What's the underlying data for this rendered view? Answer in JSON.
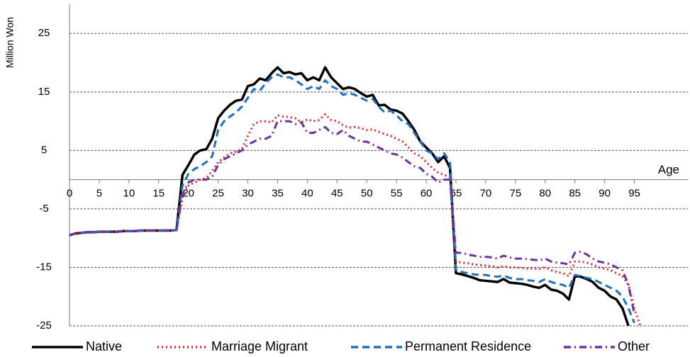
{
  "chart_data": {
    "type": "line",
    "y_label": "Million Won",
    "x_label": "Age",
    "x": [
      0,
      1,
      2,
      3,
      4,
      5,
      6,
      7,
      8,
      9,
      10,
      11,
      12,
      13,
      14,
      15,
      16,
      17,
      18,
      19,
      20,
      21,
      22,
      23,
      24,
      25,
      26,
      27,
      28,
      29,
      30,
      31,
      32,
      33,
      34,
      35,
      36,
      37,
      38,
      39,
      40,
      41,
      42,
      43,
      44,
      45,
      46,
      47,
      48,
      49,
      50,
      51,
      52,
      53,
      54,
      55,
      56,
      57,
      58,
      59,
      60,
      61,
      62,
      63,
      64,
      65,
      66,
      67,
      68,
      69,
      70,
      71,
      72,
      73,
      74,
      75,
      76,
      77,
      78,
      79,
      80,
      81,
      82,
      83,
      84,
      85,
      86,
      87,
      88,
      89,
      90,
      91,
      92,
      93,
      94,
      95,
      96
    ],
    "xlim": [
      0,
      104
    ],
    "xticks": [
      0,
      5,
      10,
      15,
      20,
      25,
      30,
      35,
      40,
      45,
      50,
      55,
      60,
      65,
      70,
      75,
      80,
      85,
      90,
      95
    ],
    "ylim": [
      -25,
      30
    ],
    "yticks": [
      -25,
      -15,
      -5,
      5,
      15,
      25
    ],
    "grid": true,
    "legend": "bottom",
    "series": [
      {
        "name": "Native",
        "color": "#000000",
        "dash": "solid",
        "values": [
          -9.5,
          -9.2,
          -9.1,
          -9,
          -9,
          -8.9,
          -8.9,
          -8.9,
          -8.9,
          -8.8,
          -8.8,
          -8.8,
          -8.7,
          -8.7,
          -8.7,
          -8.7,
          -8.7,
          -8.7,
          -8.6,
          0.8,
          2.5,
          4.3,
          5,
          5.2,
          7,
          10.5,
          11.8,
          12.8,
          13.5,
          13.7,
          16,
          16.3,
          17.3,
          17,
          18.2,
          19.2,
          18.2,
          18.4,
          18,
          18.2,
          17,
          17.5,
          17,
          19.2,
          17.5,
          16.5,
          15.5,
          15.8,
          15.5,
          14.8,
          14.2,
          14.5,
          12.7,
          12.8,
          12,
          11.8,
          11.3,
          10,
          8.5,
          6.5,
          5.5,
          4.5,
          3,
          4,
          2,
          -16,
          -16.2,
          -16.5,
          -16.8,
          -17.2,
          -17.3,
          -17.4,
          -17.5,
          -17,
          -17.6,
          -17.7,
          -17.8,
          -18,
          -18.3,
          -18.5,
          -18,
          -18.8,
          -19,
          -19.5,
          -20.5,
          -16.5,
          -16.6,
          -17,
          -17.5,
          -18.5,
          -19,
          -20,
          -20.5,
          -22,
          -25,
          null,
          null
        ]
      },
      {
        "name": "Marriage Migrant",
        "color": "#e8262b",
        "dash": "dotted",
        "values": [
          -9.5,
          -9.2,
          -9.1,
          -9,
          -9,
          -8.9,
          -8.9,
          -8.9,
          -8.9,
          -8.8,
          -8.8,
          -8.8,
          -8.7,
          -8.7,
          -8.7,
          -8.7,
          -8.7,
          -8.7,
          -8.6,
          -3,
          -1,
          -0.5,
          0,
          0.3,
          1.5,
          3,
          3.8,
          4.5,
          4.8,
          5.2,
          7.5,
          9.5,
          10,
          10,
          9.8,
          11,
          10.8,
          10.7,
          10.5,
          9.8,
          10.3,
          10,
          10.2,
          11.2,
          10.2,
          10,
          9.3,
          8.9,
          9,
          8.8,
          8.5,
          8.6,
          8.2,
          7.8,
          7.5,
          7,
          6.5,
          5.5,
          4.5,
          4,
          3,
          2,
          1.2,
          0.8,
          0.5,
          -14,
          -14.2,
          -14.3,
          -14.5,
          -14.6,
          -14.7,
          -14.8,
          -15,
          -14.8,
          -15,
          -15,
          -15.1,
          -15.2,
          -15.2,
          -15.3,
          -15,
          -15.5,
          -15.8,
          -16,
          -16.5,
          -14,
          -14,
          -14.2,
          -14.5,
          -15,
          -15.2,
          -15.5,
          -16,
          -16.5,
          -18,
          -22,
          -25
        ]
      },
      {
        "name": "Permanent Residence",
        "color": "#1f6fc0",
        "dash": "dashed",
        "values": [
          -9.5,
          -9.2,
          -9.1,
          -9,
          -9,
          -8.9,
          -8.9,
          -8.9,
          -8.9,
          -8.8,
          -8.8,
          -8.8,
          -8.7,
          -8.7,
          -8.7,
          -8.7,
          -8.7,
          -8.7,
          -8.6,
          -1,
          1,
          1.8,
          2.3,
          3,
          4,
          8.5,
          10,
          10.8,
          11.5,
          12.5,
          14,
          15.5,
          15.2,
          16.5,
          17.5,
          18,
          17.5,
          17.5,
          17,
          16.3,
          15.5,
          16,
          15.5,
          17,
          16,
          15.5,
          14.5,
          14.8,
          14.5,
          14,
          13.5,
          13.8,
          12.5,
          11.5,
          11.8,
          11,
          10,
          9.5,
          8,
          6.5,
          5,
          4.5,
          3.5,
          4.5,
          3,
          -15.5,
          -15.8,
          -16,
          -16.2,
          -16.3,
          -16.3,
          -16.5,
          -16.6,
          -16.4,
          -16.8,
          -17,
          -17,
          -17.2,
          -17.3,
          -17.5,
          -17,
          -17.5,
          -17.8,
          -18,
          -18.5,
          -16.3,
          -16.5,
          -16.8,
          -17,
          -17.5,
          -18,
          -18.5,
          -19,
          -20,
          -22,
          -24.5,
          null
        ]
      },
      {
        "name": "Other",
        "color": "#7030a0",
        "dash": "dashdot",
        "values": [
          -9.5,
          -9.2,
          -9.1,
          -9,
          -9,
          -8.9,
          -8.9,
          -8.9,
          -8.9,
          -8.8,
          -8.8,
          -8.8,
          -8.7,
          -8.7,
          -8.7,
          -8.7,
          -8.7,
          -8.7,
          -8.6,
          -2.5,
          -0.5,
          0,
          0,
          0,
          0.5,
          2.5,
          3.5,
          4,
          4.5,
          5,
          6,
          6.5,
          7,
          7,
          7.5,
          10,
          10,
          10,
          9.5,
          9.8,
          8,
          8,
          8.5,
          9,
          8,
          7.8,
          8.5,
          7.5,
          7,
          6.5,
          6.5,
          6,
          5.5,
          5,
          4.5,
          4.3,
          3.8,
          3,
          2.3,
          2,
          1,
          0.5,
          -0.5,
          0,
          0,
          -12.5,
          -12.5,
          -12.8,
          -13,
          -13.2,
          -13.2,
          -13.3,
          -13.5,
          -13,
          -13.3,
          -13.5,
          -13.5,
          -13.6,
          -13.7,
          -13.8,
          -13.5,
          -14,
          -14.2,
          -14.3,
          -14.5,
          -12.5,
          -12.3,
          -12.8,
          -13.5,
          -14,
          -14.2,
          -14.5,
          -15,
          -15.5,
          -18,
          -23,
          null
        ]
      }
    ]
  }
}
